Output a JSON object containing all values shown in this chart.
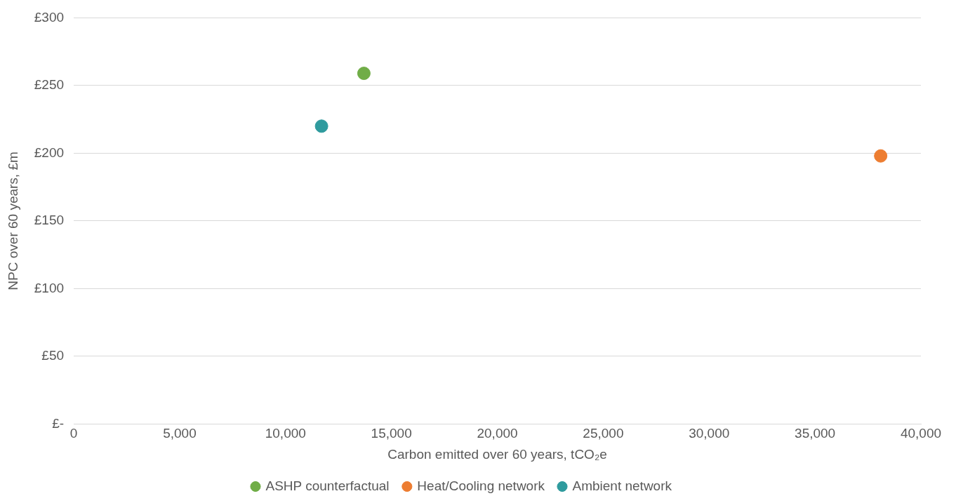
{
  "chart_data": {
    "type": "scatter",
    "xlabel": "Carbon emitted over 60 years, tCO₂e",
    "ylabel": "NPC over 60 years, £m",
    "series": [
      {
        "name": "ASHP counterfactual",
        "color": "#70ad47",
        "x": [
          13700
        ],
        "values": [
          259
        ]
      },
      {
        "name": "Heat/Cooling network",
        "color": "#ed7d31",
        "x": [
          38100
        ],
        "values": [
          198
        ]
      },
      {
        "name": "Ambient network",
        "color": "#2f9b9e",
        "x": [
          11700
        ],
        "values": [
          220
        ]
      }
    ],
    "xlim": [
      0,
      40000
    ],
    "xticks": [
      {
        "value": 0,
        "label": "0"
      },
      {
        "value": 5000,
        "label": "5,000"
      },
      {
        "value": 10000,
        "label": "10,000"
      },
      {
        "value": 15000,
        "label": "15,000"
      },
      {
        "value": 20000,
        "label": "20,000"
      },
      {
        "value": 25000,
        "label": "25,000"
      },
      {
        "value": 30000,
        "label": "30,000"
      },
      {
        "value": 35000,
        "label": "35,000"
      },
      {
        "value": 40000,
        "label": "40,000"
      }
    ],
    "ylim": [
      0,
      300
    ],
    "yticks": [
      {
        "value": 0,
        "label": "£-"
      },
      {
        "value": 50,
        "label": "£50"
      },
      {
        "value": 100,
        "label": "£100"
      },
      {
        "value": 150,
        "label": "£150"
      },
      {
        "value": 200,
        "label": "£200"
      },
      {
        "value": 250,
        "label": "£250"
      },
      {
        "value": 300,
        "label": "£300"
      }
    ],
    "grid": "y",
    "legend": "bottom",
    "marker": "circle"
  }
}
